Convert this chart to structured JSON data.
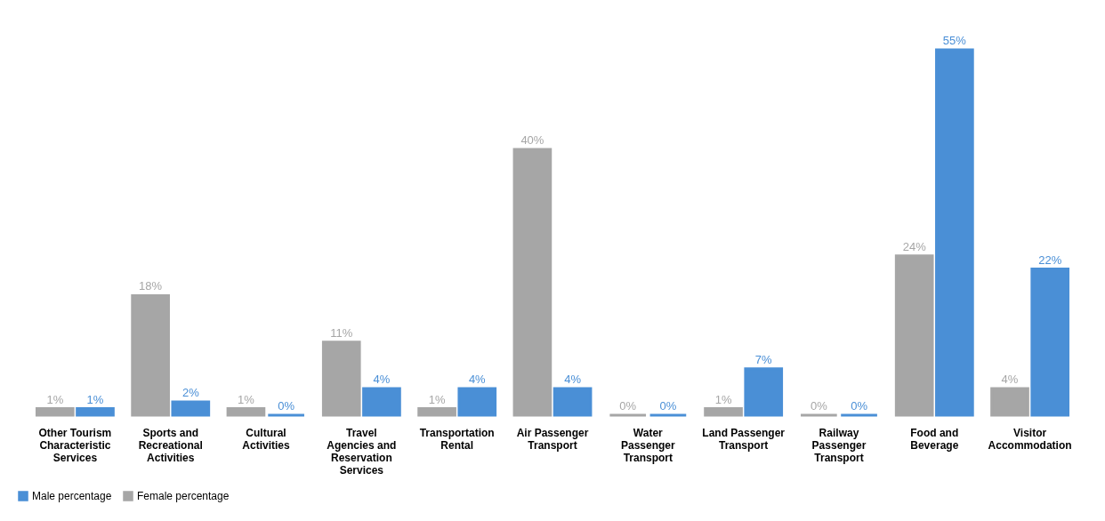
{
  "chart_data": {
    "type": "bar",
    "categories": [
      "Other Tourism Characteristic Services",
      "Sports and Recreational Activities",
      "Cultural Activities",
      "Travel Agencies and Reservation Services",
      "Transportation Rental",
      "Air Passenger Transport",
      "Water Passenger Transport",
      "Land Passenger Transport",
      "Railway Passenger Transport",
      "Food and Beverage",
      "Visitor Accommodation"
    ],
    "series": [
      {
        "name": "Male percentage",
        "color": "#4a8fd6",
        "values": [
          1,
          2,
          0,
          4,
          4,
          4,
          0,
          7,
          0,
          55,
          22
        ],
        "value_labels": [
          "1%",
          "2%",
          "0%",
          "4%",
          "4%",
          "4%",
          "0%",
          "7%",
          "0%",
          "55%",
          "22%"
        ]
      },
      {
        "name": "Female percentage",
        "color": "#a6a6a6",
        "values": [
          1,
          18,
          1,
          11,
          1,
          40,
          0,
          1,
          0,
          24,
          4
        ],
        "value_labels": [
          "1%",
          "18%",
          "1%",
          "11%",
          "1%",
          "40%",
          "0%",
          "1%",
          "0%",
          "24%",
          "4%"
        ]
      }
    ],
    "legend": "bottom",
    "grid": false
  }
}
